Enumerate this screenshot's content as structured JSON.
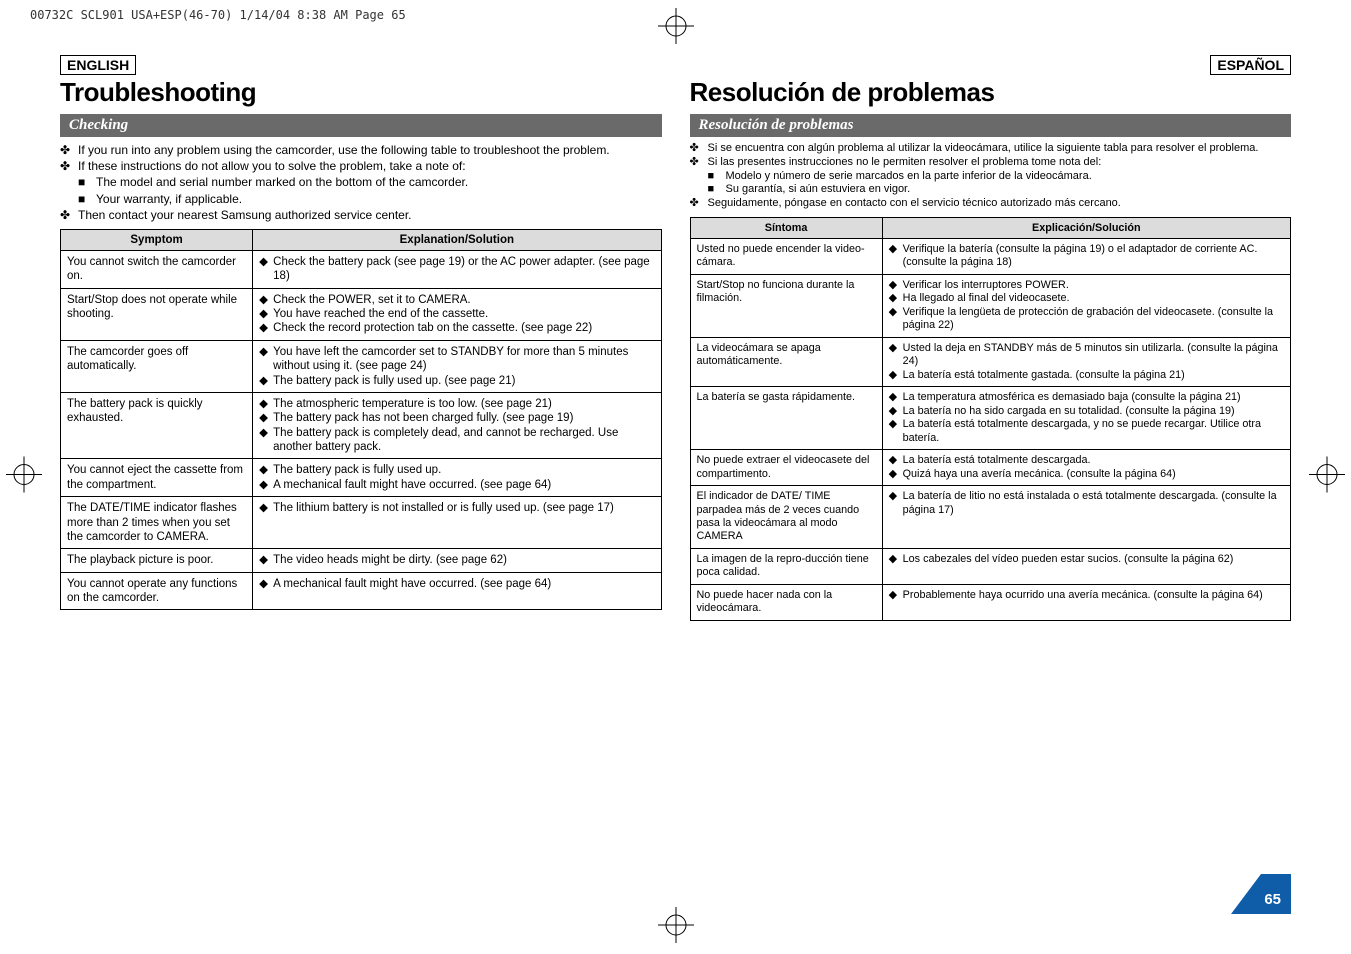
{
  "scan_header": "00732C SCL901 USA+ESP(46-70)  1/14/04 8:38 AM  Page 65",
  "left": {
    "lang": "ENGLISH",
    "title": "Troubleshooting",
    "subsection": "Checking",
    "intro": [
      {
        "icon": "✤",
        "indent": 0,
        "text": "If you run into any problem using the camcorder, use the following table to troubleshoot the problem."
      },
      {
        "icon": "✤",
        "indent": 0,
        "text": "If these instructions do not allow you to solve the problem, take a note of:"
      },
      {
        "icon": "■",
        "indent": 1,
        "text": "The model and serial number marked on the bottom of the camcorder."
      },
      {
        "icon": "■",
        "indent": 1,
        "text": "Your warranty, if applicable."
      },
      {
        "icon": "✤",
        "indent": 0,
        "text": "Then contact your nearest Samsung authorized service center."
      }
    ],
    "th1": "Symptom",
    "th2": "Explanation/Solution",
    "rows": [
      {
        "sym": "You cannot switch the camcorder on.",
        "exp": [
          "Check the battery pack (see page 19) or the AC power adapter. (see page 18)"
        ]
      },
      {
        "sym": "Start/Stop does not operate while shooting.",
        "exp": [
          "Check the POWER, set it to CAMERA.",
          "You have reached the end of the cassette.",
          "Check the record protection tab on the cassette. (see page 22)"
        ]
      },
      {
        "sym": "The camcorder goes off automatically.",
        "exp": [
          "You have left the camcorder set to STANDBY for more than 5 minutes without using it. (see page 24)",
          "The battery pack is fully used up. (see page 21)"
        ]
      },
      {
        "sym": "The battery pack is quickly exhausted.",
        "exp": [
          "The atmospheric temperature is too low. (see page 21)",
          "The battery pack has not been charged fully. (see page 19)",
          "The battery pack is completely dead, and cannot be recharged. Use another battery pack."
        ]
      },
      {
        "sym": "You cannot eject the cassette from the compartment.",
        "exp": [
          "The battery pack is fully used up.",
          "A mechanical fault might have occurred. (see page 64)"
        ]
      },
      {
        "sym": "The DATE/TIME indicator flashes more than 2 times when you set the camcorder to CAMERA.",
        "exp": [
          "The lithium battery is not installed or is fully used up. (see page 17)"
        ]
      },
      {
        "sym": "The playback picture is poor.",
        "exp": [
          "The video heads might be dirty. (see page 62)"
        ]
      },
      {
        "sym": "You cannot operate any functions on the camcorder.",
        "exp": [
          "A mechanical fault might have occurred. (see page 64)"
        ]
      }
    ]
  },
  "right": {
    "lang": "ESPAÑOL",
    "title": "Resolución de problemas",
    "subsection": "Resolución de problemas",
    "intro": [
      {
        "icon": "✤",
        "indent": 0,
        "text": "Si se encuentra con algún problema al utilizar la videocámara, utilice la siguiente tabla para resolver el problema."
      },
      {
        "icon": "✤",
        "indent": 0,
        "text": "Si las presentes instrucciones no le permiten resolver el problema tome nota del:"
      },
      {
        "icon": "■",
        "indent": 1,
        "text": "Modelo y número de serie marcados en la parte inferior de la videocámara."
      },
      {
        "icon": "■",
        "indent": 1,
        "text": "Su garantía, si aún estuviera en vigor."
      },
      {
        "icon": "✤",
        "indent": 0,
        "text": "Seguidamente, póngase en contacto con el servicio técnico autorizado más cercano."
      }
    ],
    "th1": "Síntoma",
    "th2": "Explicación/Solución",
    "rows": [
      {
        "sym": "Usted no puede encender la video-cámara.",
        "exp": [
          "Verifique la batería (consulte la página 19) o el adaptador de corriente AC. (consulte la página 18)"
        ]
      },
      {
        "sym": "Start/Stop no funciona durante la filmación.",
        "exp": [
          "Verificar los interruptores POWER.",
          "Ha llegado al final del videocasete.",
          "Verifique la lengüeta de protección de grabación del videocasete. (consulte la página 22)"
        ]
      },
      {
        "sym": "La videocámara se apaga automáticamente.",
        "exp": [
          "Usted la deja en STANDBY más de 5 minutos sin utilizarla. (consulte la página 24)",
          "La batería está totalmente gastada. (consulte la página 21)"
        ]
      },
      {
        "sym": "La batería se gasta rápidamente.",
        "exp": [
          "La temperatura atmosférica es demasiado baja (consulte la página 21)",
          "La batería no ha sido cargada en su totalidad. (consulte la página 19)",
          "La batería está totalmente descargada, y no se puede recargar. Utilice otra batería."
        ]
      },
      {
        "sym": "No puede extraer el videocasete del compartimento.",
        "exp": [
          "La batería está totalmente descargada.",
          "Quizá haya una avería mecánica. (consulte la página 64)"
        ]
      },
      {
        "sym": "El indicador de DATE/ TIME parpadea más de 2 veces cuando pasa la videocámara al modo CAMERA",
        "exp": [
          "La batería de litio no está instalada o está totalmente descargada. (consulte la página 17)"
        ]
      },
      {
        "sym": "La imagen de la repro-ducción tiene poca calidad.",
        "exp": [
          "Los cabezales del vídeo pueden estar sucios. (consulte la página 62)"
        ]
      },
      {
        "sym": "No puede hacer nada con la videocámara.",
        "exp": [
          "Probablemente haya ocurrido una avería mecánica. (consulte la página 64)"
        ]
      }
    ]
  },
  "page_number": "65",
  "colors": {
    "header_bg": "#6a6a6a",
    "th_bg": "#dcdcdc",
    "page_arrow": "#0f5da8"
  }
}
